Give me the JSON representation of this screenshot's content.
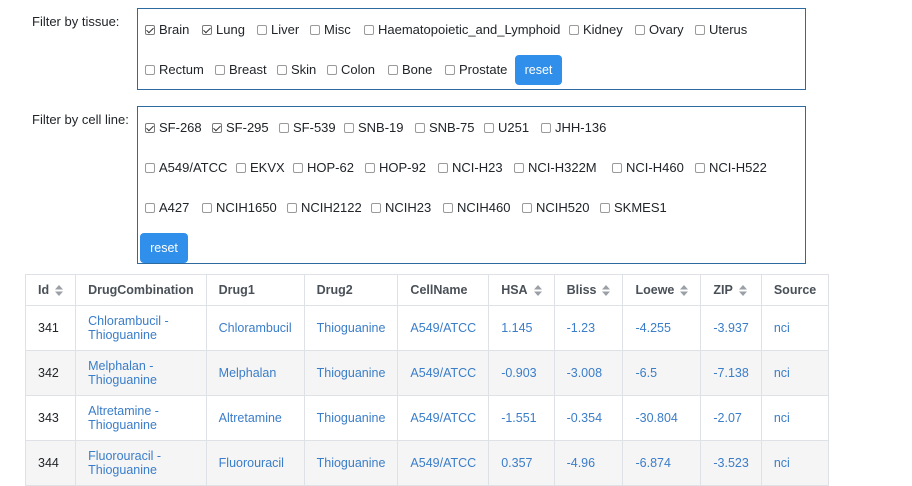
{
  "tissue_filter": {
    "label": "Filter by tissue:",
    "options": [
      {
        "label": "Brain",
        "checked": true
      },
      {
        "label": "Lung",
        "checked": true
      },
      {
        "label": "Liver",
        "checked": false
      },
      {
        "label": "Misc",
        "checked": false
      },
      {
        "label": "Haematopoietic_and_Lymphoid",
        "checked": false
      },
      {
        "label": "Kidney",
        "checked": false
      },
      {
        "label": "Ovary",
        "checked": false
      },
      {
        "label": "Uterus",
        "checked": false
      },
      {
        "label": "Rectum",
        "checked": false
      },
      {
        "label": "Breast",
        "checked": false
      },
      {
        "label": "Skin",
        "checked": false
      },
      {
        "label": "Colon",
        "checked": false
      },
      {
        "label": "Bone",
        "checked": false
      },
      {
        "label": "Prostate",
        "checked": false
      }
    ],
    "reset_label": "reset"
  },
  "cellline_filter": {
    "label": "Filter by cell line:",
    "options": [
      {
        "label": "SF-268",
        "checked": true
      },
      {
        "label": "SF-295",
        "checked": true
      },
      {
        "label": "SF-539",
        "checked": false
      },
      {
        "label": "SNB-19",
        "checked": false
      },
      {
        "label": "SNB-75",
        "checked": false
      },
      {
        "label": "U251",
        "checked": false
      },
      {
        "label": "JHH-136",
        "checked": false
      },
      {
        "label": "A549/ATCC",
        "checked": false
      },
      {
        "label": "EKVX",
        "checked": false
      },
      {
        "label": "HOP-62",
        "checked": false
      },
      {
        "label": "HOP-92",
        "checked": false
      },
      {
        "label": "NCI-H23",
        "checked": false
      },
      {
        "label": "NCI-H322M",
        "checked": false
      },
      {
        "label": "NCI-H460",
        "checked": false
      },
      {
        "label": "NCI-H522",
        "checked": false
      },
      {
        "label": "A427",
        "checked": false
      },
      {
        "label": "NCIH1650",
        "checked": false
      },
      {
        "label": "NCIH2122",
        "checked": false
      },
      {
        "label": "NCIH23",
        "checked": false
      },
      {
        "label": "NCIH460",
        "checked": false
      },
      {
        "label": "NCIH520",
        "checked": false
      },
      {
        "label": "SKMES1",
        "checked": false
      }
    ],
    "reset_label": "reset"
  },
  "table": {
    "columns": [
      {
        "label": "Id",
        "sortable": true
      },
      {
        "label": "DrugCombination",
        "sortable": false
      },
      {
        "label": "Drug1",
        "sortable": false
      },
      {
        "label": "Drug2",
        "sortable": false
      },
      {
        "label": "CellName",
        "sortable": false
      },
      {
        "label": "HSA",
        "sortable": true
      },
      {
        "label": "Bliss",
        "sortable": true
      },
      {
        "label": "Loewe",
        "sortable": true
      },
      {
        "label": "ZIP",
        "sortable": true
      },
      {
        "label": "Source",
        "sortable": false
      }
    ],
    "rows": [
      [
        "341",
        "Chlorambucil - Thioguanine",
        "Chlorambucil",
        "Thioguanine",
        "A549/ATCC",
        "1.145",
        "-1.23",
        "-4.255",
        "-3.937",
        "nci"
      ],
      [
        "342",
        "Melphalan - Thioguanine",
        "Melphalan",
        "Thioguanine",
        "A549/ATCC",
        "-0.903",
        "-3.008",
        "-6.5",
        "-7.138",
        "nci"
      ],
      [
        "343",
        "Altretamine - Thioguanine",
        "Altretamine",
        "Thioguanine",
        "A549/ATCC",
        "-1.551",
        "-0.354",
        "-30.804",
        "-2.07",
        "nci"
      ],
      [
        "344",
        "Fluorouracil - Thioguanine",
        "Fluorouracil",
        "Thioguanine",
        "A549/ATCC",
        "0.357",
        "-4.96",
        "-6.874",
        "-3.523",
        "nci"
      ]
    ]
  },
  "colors": {
    "accent": "#2f8fea",
    "link": "#3a7dc9",
    "filter_border": "#2c6aa0",
    "row_stripe": "#f5f5f5"
  }
}
